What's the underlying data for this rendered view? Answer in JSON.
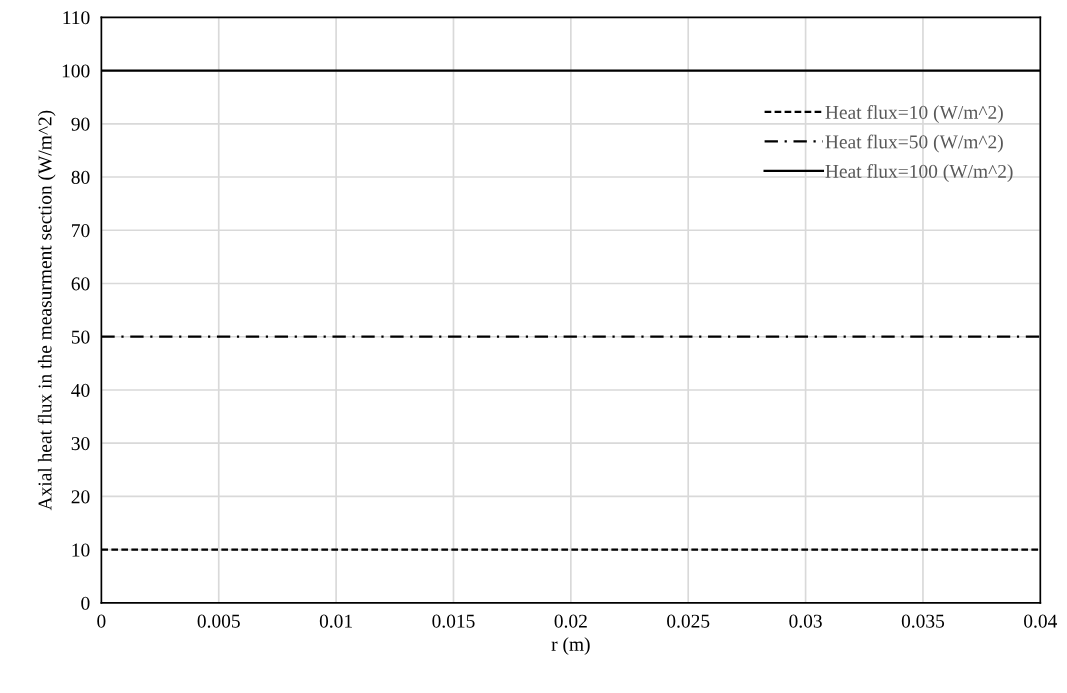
{
  "chart_data": {
    "type": "line",
    "xlabel": "r (m)",
    "ylabel": "Axial heat flux in the measurment section (W/m^2)",
    "x": [
      0,
      0.04
    ],
    "series": [
      {
        "name": "Heat flux=10 (W/m^2)",
        "color": "#000000",
        "line_style": "dashed",
        "values": [
          10,
          10
        ]
      },
      {
        "name": "Heat flux=50 (W/m^2)",
        "color": "#000000",
        "line_style": "dashdot",
        "values": [
          50,
          50
        ]
      },
      {
        "name": "Heat flux=100 (W/m^2)",
        "color": "#000000",
        "line_style": "solid",
        "values": [
          100,
          100
        ]
      }
    ],
    "xlim": [
      0,
      0.04
    ],
    "xticks": [
      0,
      0.005,
      0.01,
      0.015,
      0.02,
      0.025,
      0.03,
      0.035,
      0.04
    ],
    "ylim": [
      0,
      110
    ],
    "yticks": [
      0,
      10,
      20,
      30,
      40,
      50,
      60,
      70,
      80,
      90,
      100,
      110
    ],
    "grid": true,
    "legend": "top right",
    "marker": "none"
  }
}
